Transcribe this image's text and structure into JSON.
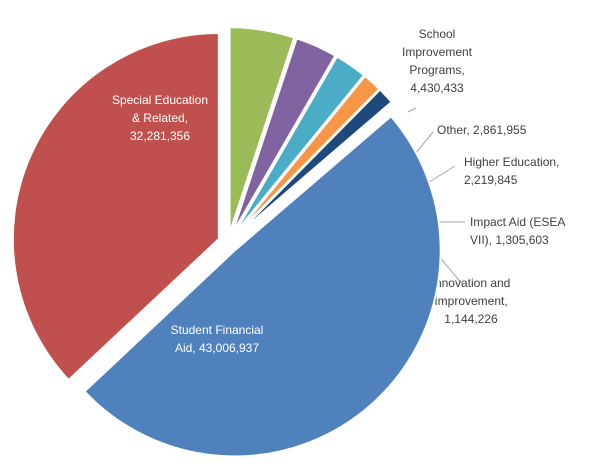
{
  "chart_data": {
    "type": "pie",
    "title": "",
    "start": "top-center",
    "direction": "clockwise",
    "slices": [
      {
        "name": "School Improvement Programs",
        "value": 4430433,
        "color": "#9BBB59",
        "label": [
          "School",
          "Improvement",
          "Programs,",
          "4,430,433"
        ]
      },
      {
        "name": "Other",
        "value": 2861955,
        "color": "#8064A2",
        "label": [
          "Other, 2,861,955"
        ]
      },
      {
        "name": "Higher Education",
        "value": 2219845,
        "color": "#4BACC6",
        "label": [
          "Higher Education,",
          "2,219,845"
        ]
      },
      {
        "name": "Impact Aid (ESEA VII)",
        "value": 1305603,
        "color": "#F79646",
        "label": [
          "Impact Aid (ESEA",
          "VII), 1,305,603"
        ]
      },
      {
        "name": "Innovation and Improvement",
        "value": 1144226,
        "color": "#1F497D",
        "label": [
          "Innovation and",
          "Improvement,",
          "1,144,226"
        ]
      },
      {
        "name": "Student Financial Aid",
        "value": 43006937,
        "color": "#4F81BD",
        "label": [
          "Student Financial",
          "Aid, 43,006,937"
        ]
      },
      {
        "name": "Special Education & Related",
        "value": 32281356,
        "color": "#C0504D",
        "label": [
          "Special Education",
          "& Related,",
          "32,281,356"
        ]
      }
    ]
  }
}
